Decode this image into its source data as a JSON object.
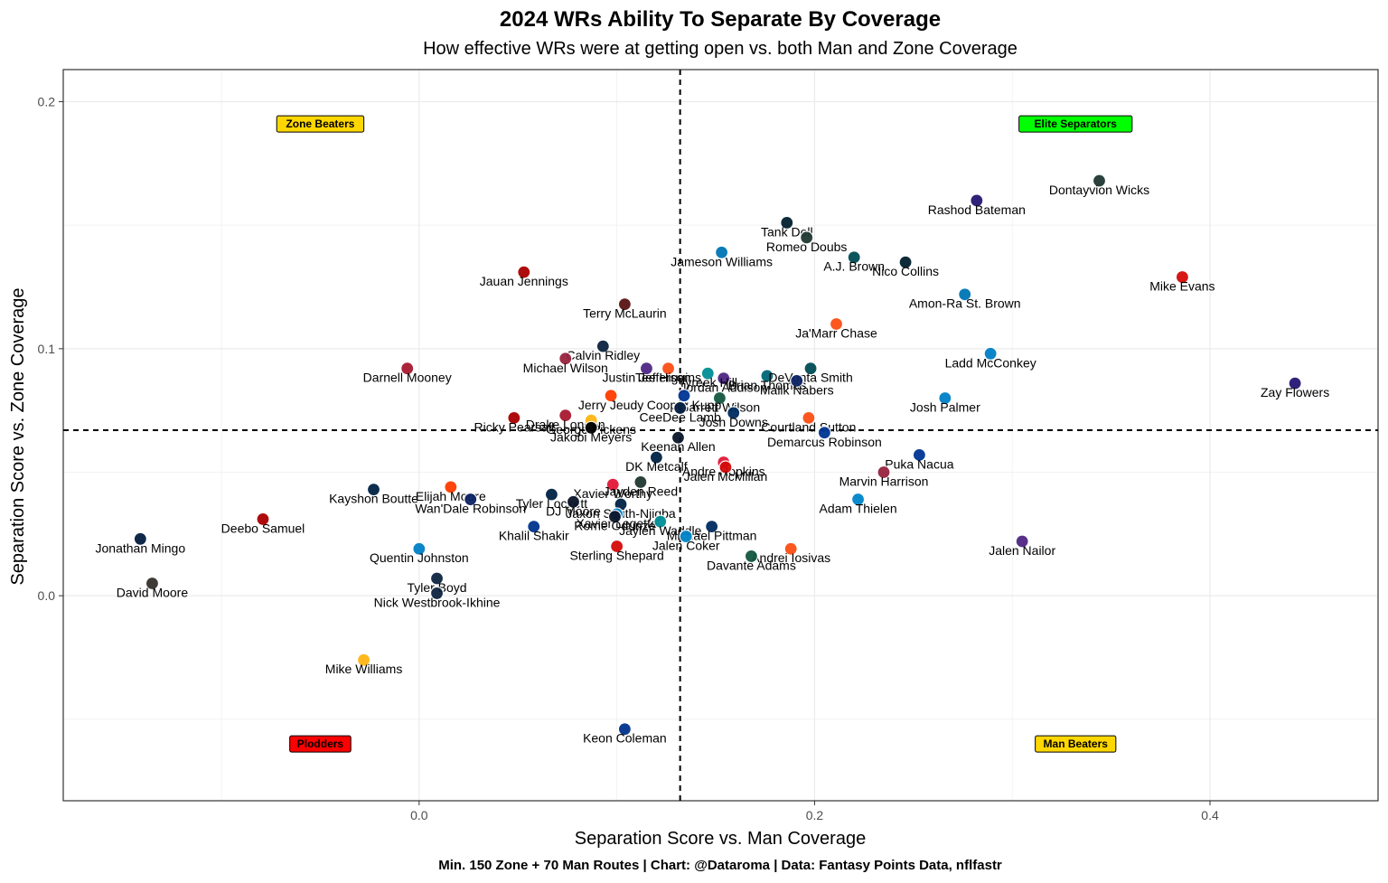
{
  "header": {
    "title": "2024 WRs Ability To Separate By Coverage",
    "subtitle": "How effective WRs were at getting open vs. both Man and Zone Coverage"
  },
  "caption": "Min. 150 Zone + 70 Man Routes | Chart: @Dataroma | Data: Fantasy Points Data, nflfastr",
  "chart_data": {
    "type": "scatter",
    "title": "2024 WRs Ability To Separate By Coverage",
    "subtitle": "How effective WRs were at getting open vs. both Man and Zone Coverage",
    "xlabel": "Separation Score vs. Man Coverage",
    "ylabel": "Separation Score vs. Zone Coverage",
    "xlim": [
      -0.18,
      0.485
    ],
    "ylim": [
      -0.083,
      0.213
    ],
    "xticks": [
      0.0,
      0.2,
      0.4
    ],
    "xtick_labels": [
      "0.0",
      "0.2",
      "0.4"
    ],
    "yticks": [
      0.0,
      0.1,
      0.2
    ],
    "ytick_labels": [
      "0.0",
      "0.1",
      "0.2"
    ],
    "vline_x": 0.132,
    "hline_y": 0.067,
    "grid": true,
    "quadrants": [
      {
        "label": "Zone Beaters",
        "x": -0.05,
        "y": 0.191,
        "color": "#FFD700"
      },
      {
        "label": "Elite Separators",
        "x": 0.332,
        "y": 0.191,
        "color": "#00FF00"
      },
      {
        "label": "Plodders",
        "x": -0.05,
        "y": -0.06,
        "color": "#FF0000"
      },
      {
        "label": "Man Beaters",
        "x": 0.332,
        "y": -0.06,
        "color": "#FFD700"
      }
    ],
    "points": [
      {
        "name": "Dontayvion Wicks",
        "x": 0.344,
        "y": 0.168,
        "team": "GB",
        "color": "#203731"
      },
      {
        "name": "Rashod Bateman",
        "x": 0.282,
        "y": 0.16,
        "team": "BAL",
        "color": "#241773"
      },
      {
        "name": "Tank Dell",
        "x": 0.186,
        "y": 0.151,
        "team": "HOU",
        "color": "#03202F"
      },
      {
        "name": "Romeo Doubs",
        "x": 0.196,
        "y": 0.145,
        "team": "GB",
        "color": "#203731"
      },
      {
        "name": "Jameson Williams",
        "x": 0.153,
        "y": 0.139,
        "team": "DET",
        "color": "#0076B6"
      },
      {
        "name": "A.J. Brown",
        "x": 0.22,
        "y": 0.137,
        "team": "PHI",
        "color": "#004C54"
      },
      {
        "name": "Nico Collins",
        "x": 0.246,
        "y": 0.135,
        "team": "HOU",
        "color": "#03202F"
      },
      {
        "name": "Mike Evans",
        "x": 0.386,
        "y": 0.129,
        "team": "TB",
        "color": "#D50A0A"
      },
      {
        "name": "Jauan Jennings",
        "x": 0.053,
        "y": 0.131,
        "team": "SF",
        "color": "#AA0000"
      },
      {
        "name": "Amon-Ra St. Brown",
        "x": 0.276,
        "y": 0.122,
        "team": "DET",
        "color": "#0076B6"
      },
      {
        "name": "Terry McLaurin",
        "x": 0.104,
        "y": 0.118,
        "team": "WAS",
        "color": "#5A1414"
      },
      {
        "name": "Ja'Marr Chase",
        "x": 0.211,
        "y": 0.11,
        "team": "CIN",
        "color": "#FB4F14"
      },
      {
        "name": "Calvin Ridley",
        "x": 0.093,
        "y": 0.101,
        "team": "TEN",
        "color": "#0C2340"
      },
      {
        "name": "Tee Higgins",
        "x": 0.126,
        "y": 0.092,
        "team": "CIN",
        "color": "#FB4F14"
      },
      {
        "name": "Brian Thomas",
        "x": 0.176,
        "y": 0.089,
        "team": "JAX",
        "color": "#006778"
      },
      {
        "name": "Ladd McConkey",
        "x": 0.289,
        "y": 0.098,
        "team": "LAC",
        "color": "#0080C6"
      },
      {
        "name": "Zay Flowers",
        "x": 0.443,
        "y": 0.086,
        "team": "BAL",
        "color": "#241773"
      },
      {
        "name": "Darnell Mooney",
        "x": -0.006,
        "y": 0.092,
        "team": "ATL",
        "color": "#A71930"
      },
      {
        "name": "Michael Wilson",
        "x": 0.074,
        "y": 0.096,
        "team": "ARI",
        "color": "#97233F"
      },
      {
        "name": "Justin Jefferson",
        "x": 0.115,
        "y": 0.092,
        "team": "MIN",
        "color": "#4F2683"
      },
      {
        "name": "Jordan Addison",
        "x": 0.154,
        "y": 0.088,
        "team": "MIN",
        "color": "#4F2683"
      },
      {
        "name": "Tyreek Hill",
        "x": 0.146,
        "y": 0.09,
        "team": "MIA",
        "color": "#008E97"
      },
      {
        "name": "DeVonta Smith",
        "x": 0.198,
        "y": 0.092,
        "team": "PHI",
        "color": "#004C54"
      },
      {
        "name": "Malik Nabers",
        "x": 0.191,
        "y": 0.087,
        "team": "NYG",
        "color": "#0B2265"
      },
      {
        "name": "Garrett Wilson",
        "x": 0.152,
        "y": 0.08,
        "team": "NYJ",
        "color": "#125740"
      },
      {
        "name": "Cooper Kupp",
        "x": 0.134,
        "y": 0.081,
        "team": "LA",
        "color": "#003594"
      },
      {
        "name": "Jerry Jeudy",
        "x": 0.097,
        "y": 0.081,
        "team": "CLE",
        "color": "#FF3C00"
      },
      {
        "name": "Josh Palmer",
        "x": 0.266,
        "y": 0.08,
        "team": "LAC",
        "color": "#0080C6"
      },
      {
        "name": "CeeDee Lamb",
        "x": 0.132,
        "y": 0.076,
        "team": "DAL",
        "color": "#041E42"
      },
      {
        "name": "Josh Downs",
        "x": 0.159,
        "y": 0.074,
        "team": "IND",
        "color": "#002C5F"
      },
      {
        "name": "Drake London",
        "x": 0.074,
        "y": 0.073,
        "team": "ATL",
        "color": "#A71930"
      },
      {
        "name": "George Pickens",
        "x": 0.087,
        "y": 0.071,
        "team": "PIT",
        "color": "#FFB612"
      },
      {
        "name": "Ricky Pearsall",
        "x": 0.048,
        "y": 0.072,
        "team": "SF",
        "color": "#AA0000"
      },
      {
        "name": "Courtland Sutton",
        "x": 0.197,
        "y": 0.072,
        "team": "DEN",
        "color": "#FB4F14"
      },
      {
        "name": "Jakobi Meyers",
        "x": 0.087,
        "y": 0.068,
        "team": "LV",
        "color": "#000000"
      },
      {
        "name": "Keenan Allen",
        "x": 0.131,
        "y": 0.064,
        "team": "CHI",
        "color": "#0B162A"
      },
      {
        "name": "Demarcus Robinson",
        "x": 0.205,
        "y": 0.066,
        "team": "LA",
        "color": "#003594"
      },
      {
        "name": "Puka Nacua",
        "x": 0.253,
        "y": 0.057,
        "team": "LA",
        "color": "#003594"
      },
      {
        "name": "DK Metcalf",
        "x": 0.12,
        "y": 0.056,
        "team": "SEA",
        "color": "#002244"
      },
      {
        "name": "Andre Hopkins",
        "x": 0.154,
        "y": 0.054,
        "team": "KC",
        "color": "#E31837"
      },
      {
        "name": "Jalen McMillan",
        "x": 0.155,
        "y": 0.052,
        "team": "TB",
        "color": "#D50A0A"
      },
      {
        "name": "Marvin Harrison",
        "x": 0.235,
        "y": 0.05,
        "team": "ARI",
        "color": "#97233F"
      },
      {
        "name": "Tyler Lockett",
        "x": 0.067,
        "y": 0.041,
        "team": "SEA",
        "color": "#002244"
      },
      {
        "name": "Xavier Worthy",
        "x": 0.098,
        "y": 0.045,
        "team": "KC",
        "color": "#E31837"
      },
      {
        "name": "Jayden Reed",
        "x": 0.112,
        "y": 0.046,
        "team": "GB",
        "color": "#203731"
      },
      {
        "name": "Elijah Moore",
        "x": 0.016,
        "y": 0.044,
        "team": "CLE",
        "color": "#FF3C00"
      },
      {
        "name": "Kayshon Boutte",
        "x": -0.023,
        "y": 0.043,
        "team": "NE",
        "color": "#002244"
      },
      {
        "name": "DJ Moore",
        "x": 0.078,
        "y": 0.038,
        "team": "CHI",
        "color": "#0B162A"
      },
      {
        "name": "Jaxon Smith-Njigba",
        "x": 0.102,
        "y": 0.037,
        "team": "SEA",
        "color": "#002244"
      },
      {
        "name": "Wan'Dale Robinson",
        "x": 0.026,
        "y": 0.039,
        "team": "NYG",
        "color": "#0B2265"
      },
      {
        "name": "Adam Thielen",
        "x": 0.222,
        "y": 0.039,
        "team": "CAR",
        "color": "#0085CA"
      },
      {
        "name": "Deebo Samuel",
        "x": -0.079,
        "y": 0.031,
        "team": "SF",
        "color": "#AA0000"
      },
      {
        "name": "Xavier Legette",
        "x": 0.1,
        "y": 0.033,
        "team": "CAR",
        "color": "#0085CA"
      },
      {
        "name": "Jaylen Waddle",
        "x": 0.122,
        "y": 0.03,
        "team": "MIA",
        "color": "#008E97"
      },
      {
        "name": "Michael Pittman",
        "x": 0.148,
        "y": 0.028,
        "team": "IND",
        "color": "#002C5F"
      },
      {
        "name": "Rome Odunze",
        "x": 0.099,
        "y": 0.032,
        "team": "CHI",
        "color": "#0B162A"
      },
      {
        "name": "Khalil Shakir",
        "x": 0.058,
        "y": 0.028,
        "team": "BUF",
        "color": "#00338D"
      },
      {
        "name": "Jonathan Mingo",
        "x": -0.141,
        "y": 0.023,
        "team": "DAL",
        "color": "#041E42"
      },
      {
        "name": "Jalen Nailor",
        "x": 0.305,
        "y": 0.022,
        "team": "MIN",
        "color": "#4F2683"
      },
      {
        "name": "Jalen Coker",
        "x": 0.135,
        "y": 0.024,
        "team": "CAR",
        "color": "#0085CA"
      },
      {
        "name": "Quentin Johnston",
        "x": 0.0,
        "y": 0.019,
        "team": "LAC",
        "color": "#0080C6"
      },
      {
        "name": "Andrei Iosivas",
        "x": 0.188,
        "y": 0.019,
        "team": "CIN",
        "color": "#FB4F14"
      },
      {
        "name": "Davante Adams",
        "x": 0.168,
        "y": 0.016,
        "team": "NYJ",
        "color": "#125740"
      },
      {
        "name": "Sterling Shepard",
        "x": 0.1,
        "y": 0.02,
        "team": "TB",
        "color": "#D50A0A"
      },
      {
        "name": "Tyler Boyd",
        "x": 0.009,
        "y": 0.007,
        "team": "TEN",
        "color": "#0C2340"
      },
      {
        "name": "David Moore",
        "x": -0.135,
        "y": 0.005,
        "team": "TB",
        "color": "#34302B"
      },
      {
        "name": "Nick Westbrook-Ikhine",
        "x": 0.009,
        "y": 0.001,
        "team": "TEN",
        "color": "#0C2340"
      },
      {
        "name": "Mike Williams",
        "x": -0.028,
        "y": -0.026,
        "team": "PIT",
        "color": "#FFB612"
      },
      {
        "name": "Keon Coleman",
        "x": 0.104,
        "y": -0.054,
        "team": "BUF",
        "color": "#00338D"
      }
    ]
  }
}
